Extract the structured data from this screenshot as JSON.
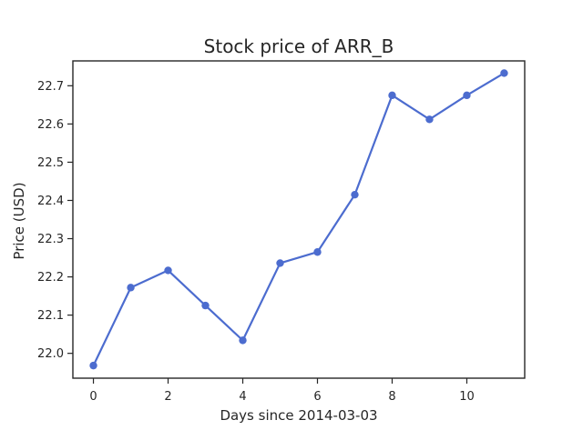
{
  "chart_data": {
    "type": "line",
    "title": "Stock price of ARR_B",
    "xlabel": "Days since 2014-03-03",
    "ylabel": "Price (USD)",
    "xlim": [
      -0.55,
      11.55
    ],
    "ylim": [
      21.935,
      22.765
    ],
    "xticks": [
      0,
      2,
      4,
      6,
      8,
      10
    ],
    "yticks": [
      22.0,
      22.1,
      22.2,
      22.3,
      22.4,
      22.5,
      22.6,
      22.7
    ],
    "grid": false,
    "series": [
      {
        "x": [
          0,
          1,
          2,
          3,
          4,
          5,
          6,
          7,
          8,
          9,
          10,
          11
        ],
        "values": [
          21.968,
          22.172,
          22.217,
          22.125,
          22.034,
          22.236,
          22.265,
          22.415,
          22.675,
          22.612,
          22.675,
          22.733
        ],
        "color": "#4c6ccf",
        "marker": "circle"
      }
    ]
  }
}
